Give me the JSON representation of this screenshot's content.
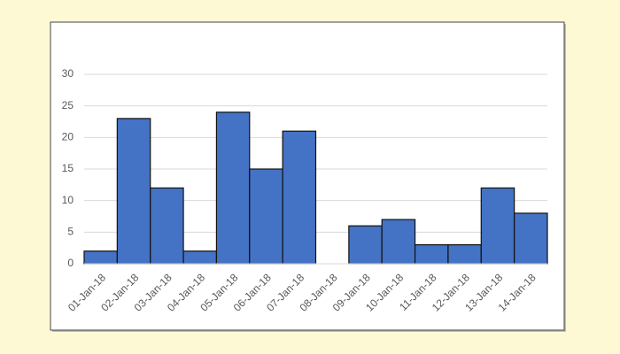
{
  "chart_data": {
    "type": "bar",
    "categories": [
      "01-Jan-18",
      "02-Jan-18",
      "03-Jan-18",
      "04-Jan-18",
      "05-Jan-18",
      "06-Jan-18",
      "07-Jan-18",
      "08-Jan-18",
      "09-Jan-18",
      "10-Jan-18",
      "11-Jan-18",
      "12-Jan-18",
      "13-Jan-18",
      "14-Jan-18"
    ],
    "values": [
      2,
      23,
      12,
      2,
      24,
      15,
      21,
      0,
      6,
      7,
      3,
      3,
      12,
      8
    ],
    "color": "#4472c4",
    "ylim": [
      0,
      30
    ],
    "yticks": [
      0,
      5,
      10,
      15,
      20,
      25,
      30
    ],
    "grid": true
  }
}
